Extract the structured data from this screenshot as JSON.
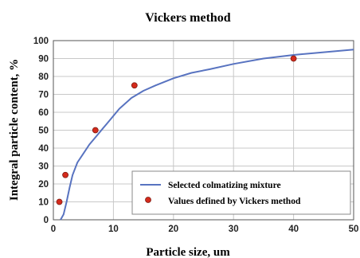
{
  "chart_data": {
    "type": "scatter",
    "title": "Vickers method",
    "xlabel": "Particle size, um",
    "ylabel": "Integral particle content, %",
    "xlim": [
      0,
      50
    ],
    "ylim": [
      0,
      100
    ],
    "xticks": [
      0,
      10,
      20,
      30,
      40,
      50
    ],
    "yticks": [
      0,
      10,
      20,
      30,
      40,
      50,
      60,
      70,
      80,
      90,
      100
    ],
    "grid": true,
    "legend_position": "bottom-right",
    "series": [
      {
        "name": "Selected colmatizing mixture",
        "kind": "line",
        "color": "#5873c0",
        "x": [
          1.2,
          1.7,
          2.2,
          2.7,
          3.2,
          4,
          5,
          6,
          7,
          8,
          9,
          10,
          11,
          12,
          13,
          14,
          15,
          17,
          20,
          23,
          26,
          30,
          35,
          40,
          45,
          50
        ],
        "y": [
          0,
          3,
          10,
          18,
          25,
          32,
          37,
          42,
          46,
          50,
          54,
          58,
          62,
          65,
          68,
          70,
          72,
          75,
          79,
          82,
          84,
          87,
          90,
          92,
          93.5,
          95
        ]
      },
      {
        "name": "Values defined by Vickers method",
        "kind": "points",
        "color": "#d42a1c",
        "x": [
          1,
          2,
          7,
          13.5,
          40
        ],
        "y": [
          10,
          25,
          50,
          75,
          90
        ]
      }
    ]
  }
}
